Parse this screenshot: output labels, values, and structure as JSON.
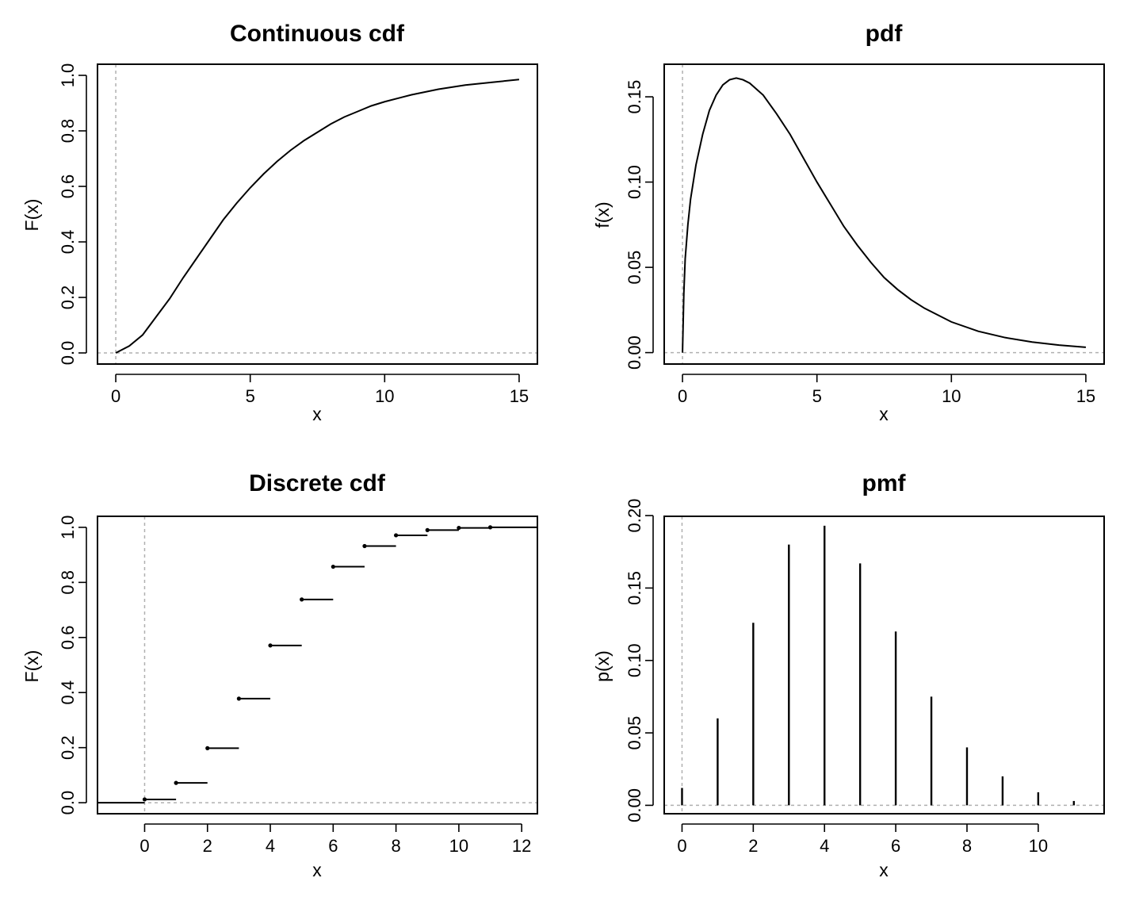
{
  "chart_data": [
    {
      "type": "line",
      "title": "Continuous cdf",
      "xlabel": "x",
      "ylabel": "F(x)",
      "xlim": [
        0,
        15
      ],
      "ylim": [
        0,
        1
      ],
      "xticks": [
        "0",
        "5",
        "10",
        "15"
      ],
      "yticks": [
        "0.0",
        "0.2",
        "0.4",
        "0.6",
        "0.8",
        "1.0"
      ],
      "xtick_values": [
        0,
        5,
        10,
        15
      ],
      "ytick_values": [
        0,
        0.2,
        0.4,
        0.6,
        0.8,
        1.0
      ],
      "reference_lines": {
        "x": 0,
        "y": 0
      },
      "x": [
        0,
        0.5,
        1,
        1.5,
        2,
        2.5,
        3,
        3.5,
        4,
        4.5,
        5,
        5.5,
        6,
        6.5,
        7,
        7.5,
        8,
        8.5,
        9,
        9.5,
        10,
        11,
        12,
        13,
        14,
        15
      ],
      "y": [
        0,
        0.025,
        0.065,
        0.13,
        0.195,
        0.27,
        0.34,
        0.41,
        0.48,
        0.54,
        0.595,
        0.645,
        0.69,
        0.73,
        0.765,
        0.795,
        0.825,
        0.85,
        0.87,
        0.89,
        0.905,
        0.93,
        0.95,
        0.965,
        0.975,
        0.985
      ]
    },
    {
      "type": "line",
      "title": "pdf",
      "xlabel": "x",
      "ylabel": "f(x)",
      "xlim": [
        0,
        15
      ],
      "ylim": [
        0,
        0.16
      ],
      "xticks": [
        "0",
        "5",
        "10",
        "15"
      ],
      "yticks": [
        "0.00",
        "0.05",
        "0.10",
        "0.15"
      ],
      "xtick_values": [
        0,
        5,
        10,
        15
      ],
      "ytick_values": [
        0,
        0.05,
        0.1,
        0.15
      ],
      "reference_lines": {
        "x": 0,
        "y": 0
      },
      "x": [
        0,
        0.05,
        0.1,
        0.2,
        0.3,
        0.5,
        0.75,
        1,
        1.25,
        1.5,
        1.75,
        2,
        2.25,
        2.5,
        3,
        3.5,
        4,
        4.5,
        5,
        5.5,
        6,
        6.5,
        7,
        7.5,
        8,
        8.5,
        9,
        9.5,
        10,
        11,
        12,
        13,
        14,
        15
      ],
      "y": [
        0,
        0.035,
        0.055,
        0.075,
        0.09,
        0.11,
        0.128,
        0.142,
        0.151,
        0.157,
        0.16,
        0.161,
        0.16,
        0.158,
        0.151,
        0.14,
        0.128,
        0.114,
        0.1,
        0.087,
        0.074,
        0.063,
        0.053,
        0.044,
        0.037,
        0.031,
        0.026,
        0.022,
        0.018,
        0.0125,
        0.0088,
        0.0062,
        0.0044,
        0.0031
      ]
    },
    {
      "type": "step",
      "title": "Discrete cdf",
      "xlabel": "x",
      "ylabel": "F(x)",
      "xlim": [
        -1.5,
        12.5
      ],
      "ylim": [
        0,
        1
      ],
      "xticks": [
        "0",
        "2",
        "4",
        "6",
        "8",
        "10",
        "12"
      ],
      "yticks": [
        "0.0",
        "0.2",
        "0.4",
        "0.6",
        "0.8",
        "1.0"
      ],
      "xtick_values": [
        0,
        2,
        4,
        6,
        8,
        10,
        12
      ],
      "ytick_values": [
        0,
        0.2,
        0.4,
        0.6,
        0.8,
        1.0
      ],
      "reference_lines": {
        "x": 0,
        "y": 0
      },
      "x": [
        0,
        1,
        2,
        3,
        4,
        5,
        6,
        7,
        8,
        9,
        10,
        11
      ],
      "y": [
        0.012,
        0.072,
        0.198,
        0.378,
        0.571,
        0.738,
        0.857,
        0.932,
        0.971,
        0.99,
        0.998,
        1.0
      ]
    },
    {
      "type": "bar",
      "title": "pmf",
      "xlabel": "x",
      "ylabel": "p(x)",
      "xlim": [
        0,
        11.5
      ],
      "ylim": [
        0,
        0.2
      ],
      "xticks": [
        "0",
        "2",
        "4",
        "6",
        "8",
        "10"
      ],
      "yticks": [
        "0.00",
        "0.05",
        "0.10",
        "0.15",
        "0.20"
      ],
      "xtick_values": [
        0,
        2,
        4,
        6,
        8,
        10
      ],
      "ytick_values": [
        0,
        0.05,
        0.1,
        0.15,
        0.2
      ],
      "reference_lines": {
        "x": 0,
        "y": 0
      },
      "x": [
        0,
        1,
        2,
        3,
        4,
        5,
        6,
        7,
        8,
        9,
        10,
        11
      ],
      "values": [
        0.012,
        0.06,
        0.126,
        0.18,
        0.193,
        0.167,
        0.12,
        0.075,
        0.04,
        0.02,
        0.009,
        0.003
      ]
    }
  ]
}
